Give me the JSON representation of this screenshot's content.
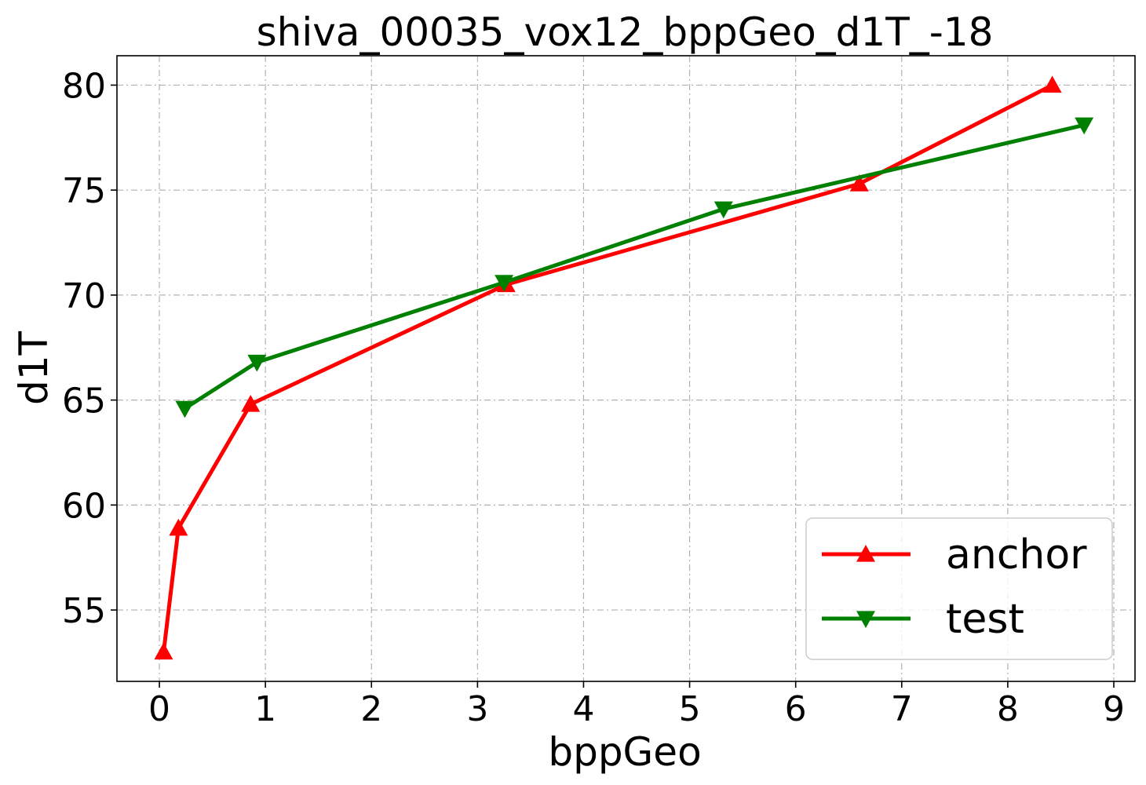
{
  "chart_data": {
    "type": "line",
    "title": "shiva_00035_vox12_bppGeo_d1T_-18",
    "xlabel": "bppGeo",
    "ylabel": "d1T",
    "xlim": [
      -0.4,
      9.2
    ],
    "ylim": [
      51.6,
      81.4
    ],
    "xticks": [
      0,
      1,
      2,
      3,
      4,
      5,
      6,
      7,
      8,
      9
    ],
    "yticks": [
      55,
      60,
      65,
      70,
      75,
      80
    ],
    "grid": true,
    "legend_position": "lower-right",
    "series": [
      {
        "name": "anchor",
        "color": "#ff0000",
        "marker": "triangle-up",
        "x": [
          0.04,
          0.18,
          0.86,
          3.27,
          6.6,
          8.42
        ],
        "y": [
          53.0,
          58.9,
          64.8,
          70.5,
          75.3,
          80.0
        ]
      },
      {
        "name": "test",
        "color": "#008000",
        "marker": "triangle-down",
        "x": [
          0.24,
          0.92,
          3.25,
          5.32,
          8.72
        ],
        "y": [
          64.6,
          66.8,
          70.6,
          74.1,
          78.1
        ]
      }
    ]
  }
}
